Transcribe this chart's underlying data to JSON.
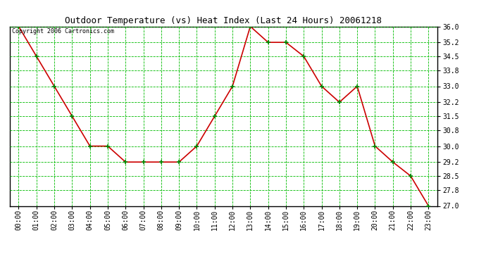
{
  "title": "Outdoor Temperature (vs) Heat Index (Last 24 Hours) 20061218",
  "copyright": "Copyright 2006 Cartronics.com",
  "x_labels": [
    "00:00",
    "01:00",
    "02:00",
    "03:00",
    "04:00",
    "05:00",
    "06:00",
    "07:00",
    "08:00",
    "09:00",
    "10:00",
    "11:00",
    "12:00",
    "13:00",
    "14:00",
    "15:00",
    "16:00",
    "17:00",
    "18:00",
    "19:00",
    "20:00",
    "21:00",
    "22:00",
    "23:00"
  ],
  "y_values": [
    36.0,
    34.5,
    33.0,
    31.5,
    30.0,
    30.0,
    29.2,
    29.2,
    29.2,
    29.2,
    30.0,
    31.5,
    33.0,
    36.0,
    35.2,
    35.2,
    34.5,
    33.0,
    32.2,
    33.0,
    30.0,
    29.2,
    28.5,
    27.0
  ],
  "y_min": 27.0,
  "y_max": 36.0,
  "y_ticks": [
    27.0,
    27.8,
    28.5,
    29.2,
    30.0,
    30.8,
    31.5,
    32.2,
    33.0,
    33.8,
    34.5,
    35.2,
    36.0
  ],
  "line_color": "#cc0000",
  "marker_color": "#008800",
  "bg_color": "#ffffff",
  "grid_color": "#00bb00",
  "title_color": "#000000",
  "title_fontsize": 9,
  "tick_fontsize": 7,
  "copyright_fontsize": 6
}
